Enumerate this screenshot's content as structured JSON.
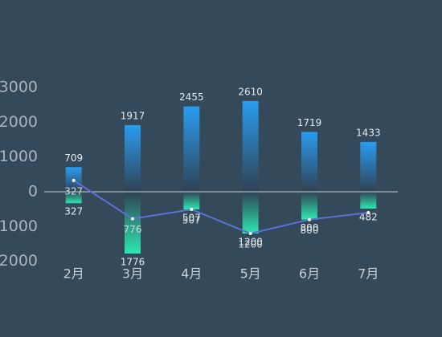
{
  "chart_data": {
    "type": "bar",
    "categories": [
      "2月",
      "3月",
      "4月",
      "5月",
      "6月",
      "7月"
    ],
    "series": [
      {
        "type": "bar",
        "color": "#2a9cf0",
        "values": [
          709,
          1917,
          2455,
          2610,
          1719,
          1433
        ]
      },
      {
        "type": "bar",
        "color": "#2de8b0",
        "values": [
          -327,
          -1776,
          -507,
          -1200,
          -800,
          -482
        ],
        "value_labels": [
          "327",
          "1776",
          "507",
          "1200",
          "800",
          "482"
        ]
      },
      {
        "type": "line",
        "color": "#5b72d6",
        "values": [
          327,
          -776,
          -507,
          -1200,
          -800,
          -600
        ],
        "value_labels": [
          "327",
          "776",
          "507",
          "1200",
          "800",
          null
        ]
      }
    ],
    "ylim": [
      -2000,
      3000
    ],
    "yticks": [
      3000,
      2000,
      1000,
      0,
      {
        "value": -1000,
        "label": "1000"
      },
      {
        "value": -2000,
        "label": "2000"
      }
    ]
  }
}
